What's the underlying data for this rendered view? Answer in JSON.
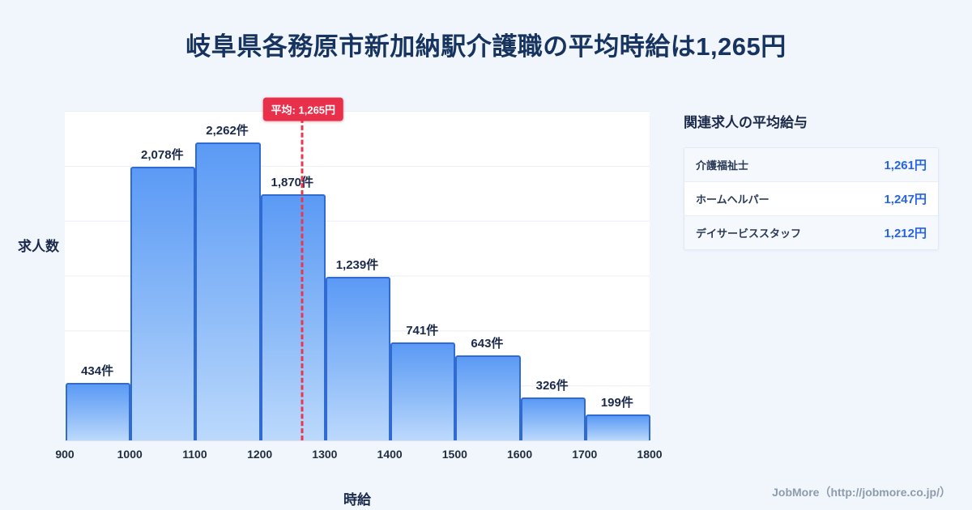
{
  "title": "岐阜県各務原市新加納駅介護職の平均時給は1,265円",
  "chart_data": {
    "type": "bar",
    "subtype": "histogram",
    "title": "岐阜県各務原市新加納駅介護職の平均時給は1,265円",
    "xlabel": "時給",
    "ylabel": "求人数",
    "bin_edges": [
      900,
      1000,
      1100,
      1200,
      1300,
      1400,
      1500,
      1600,
      1700,
      1800
    ],
    "x_tick_labels": [
      "900",
      "1000",
      "1100",
      "1200",
      "1300",
      "1400",
      "1500",
      "1600",
      "1700",
      "1800"
    ],
    "values": [
      434,
      2078,
      2262,
      1870,
      1239,
      741,
      643,
      326,
      199
    ],
    "bar_labels": [
      "434件",
      "2,078件",
      "2,262件",
      "1,870件",
      "1,239件",
      "741件",
      "643件",
      "326件",
      "199件"
    ],
    "ylim": [
      0,
      2500
    ],
    "grid": "horizontal",
    "average": {
      "value": 1265,
      "label": "平均: 1,265円"
    }
  },
  "side_panel": {
    "heading": "関連求人の平均給与",
    "rows": [
      {
        "label": "介護福祉士",
        "value": "1,261円"
      },
      {
        "label": "ホームヘルパー",
        "value": "1,247円"
      },
      {
        "label": "デイサービススタッフ",
        "value": "1,212円"
      }
    ]
  },
  "footer": {
    "credit": "JobMore（http://jobmore.co.jp/）"
  },
  "colors": {
    "title": "#17335f",
    "bar_border": "#2f6bd0",
    "bar_gradient_top": "#5b9af5",
    "bar_gradient_bottom": "#bcd9fc",
    "average_red": "#e8304a",
    "value_blue": "#2563eb",
    "background": "#f1f6fc"
  }
}
